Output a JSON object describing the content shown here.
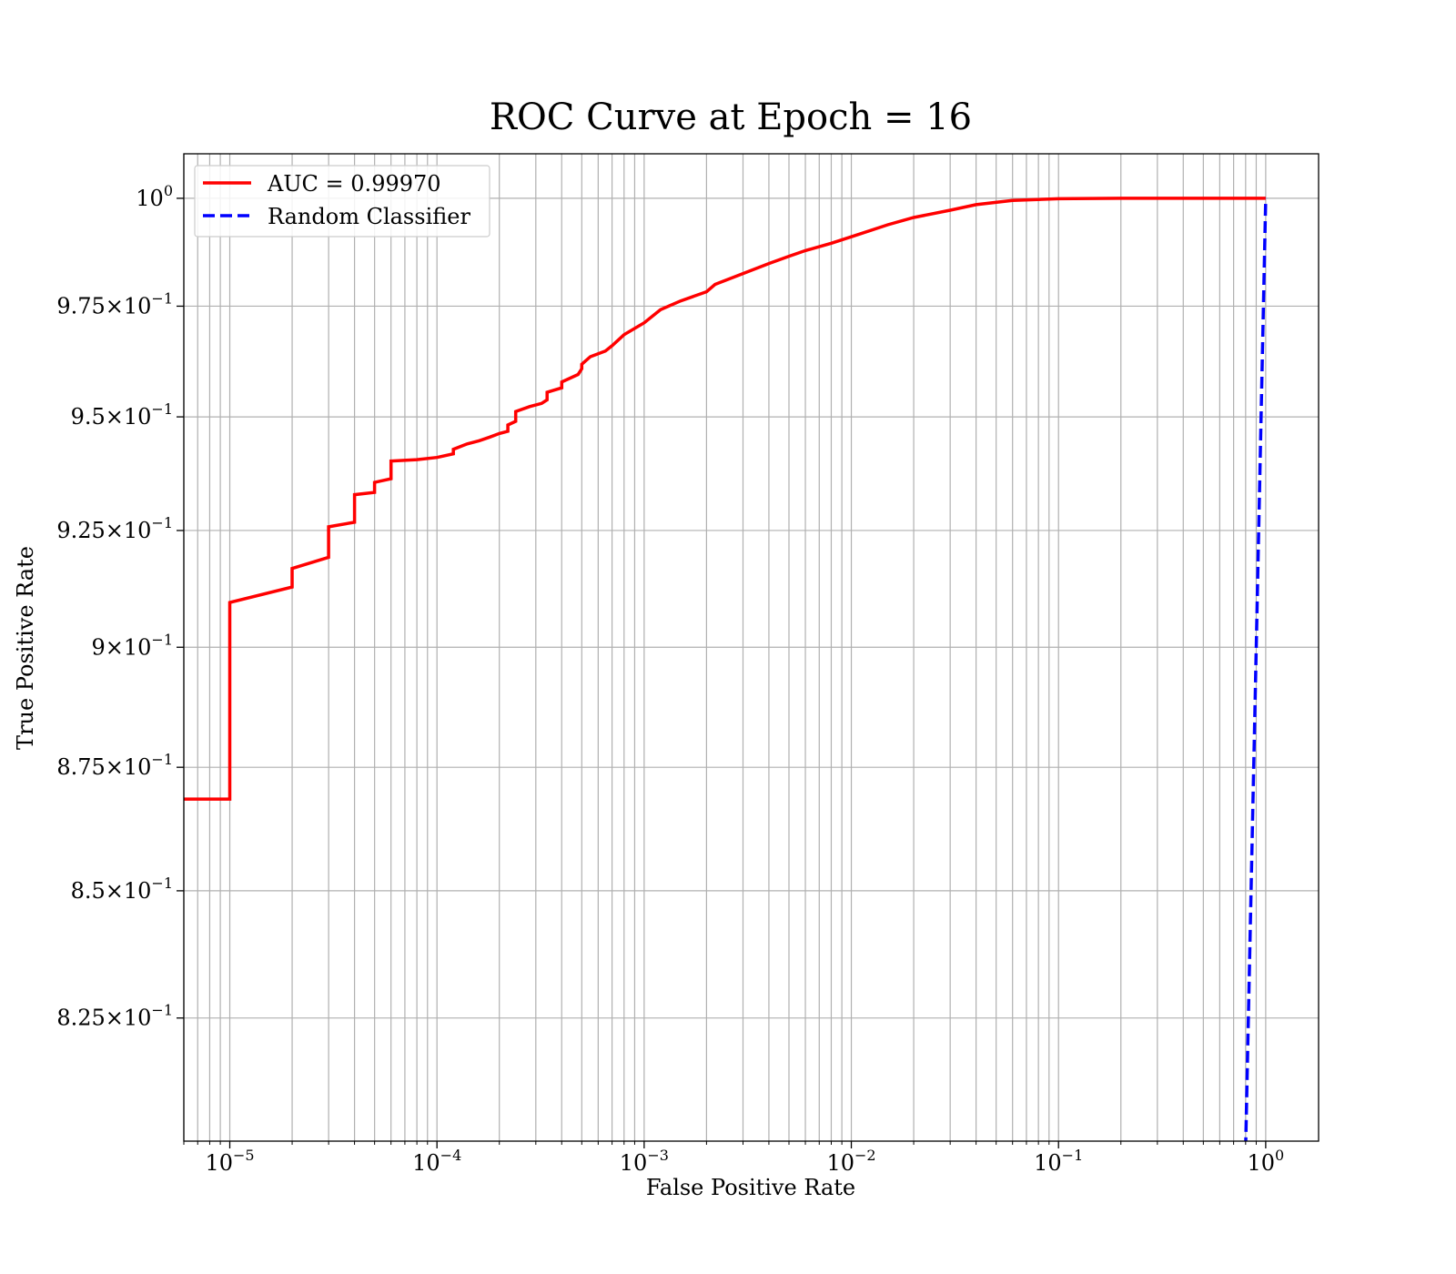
{
  "chart_data": {
    "type": "line",
    "title": "ROC Curve at Epoch = 16",
    "xlabel": "False Positive Rate",
    "ylabel": "True Positive Rate",
    "xscale": "log",
    "yscale": "log",
    "xlim": [
      6e-06,
      1.8
    ],
    "ylim": [
      0.8015,
      1.0105
    ],
    "grid": "major and minor",
    "legend_position": "top-left",
    "x_ticks": [
      {
        "base": "10",
        "exp": "−5"
      },
      {
        "base": "10",
        "exp": "−4"
      },
      {
        "base": "10",
        "exp": "−3"
      },
      {
        "base": "10",
        "exp": "−2"
      },
      {
        "base": "10",
        "exp": "−1"
      },
      {
        "base": "10",
        "exp": "0"
      }
    ],
    "y_ticks": [
      {
        "value": 1.0,
        "mantissa": "",
        "base": "10",
        "exp": "0"
      },
      {
        "value": 0.975,
        "mantissa": "9.75",
        "base": "10",
        "exp": "−1"
      },
      {
        "value": 0.95,
        "mantissa": "9.5",
        "base": "10",
        "exp": "−1"
      },
      {
        "value": 0.925,
        "mantissa": "9.25",
        "base": "10",
        "exp": "−1"
      },
      {
        "value": 0.9,
        "mantissa": "9",
        "base": "10",
        "exp": "−1"
      },
      {
        "value": 0.875,
        "mantissa": "8.75",
        "base": "10",
        "exp": "−1"
      },
      {
        "value": 0.85,
        "mantissa": "8.5",
        "base": "10",
        "exp": "−1"
      },
      {
        "value": 0.825,
        "mantissa": "8.25",
        "base": "10",
        "exp": "−1"
      }
    ],
    "series": [
      {
        "name": "AUC = 0.99970",
        "color": "#ff0000",
        "style": "solid",
        "x": [
          6e-06,
          1e-05,
          1e-05,
          2e-05,
          2e-05,
          3e-05,
          3e-05,
          4e-05,
          4e-05,
          5e-05,
          5e-05,
          6e-05,
          6e-05,
          8e-05,
          0.0001,
          0.00012,
          0.00012,
          0.00014,
          0.00016,
          0.00018,
          0.0002,
          0.00022,
          0.00022,
          0.00024,
          0.00024,
          0.00028,
          0.00032,
          0.00034,
          0.00034,
          0.0004,
          0.0004,
          0.00048,
          0.0005,
          0.0005,
          0.00055,
          0.00065,
          0.0007,
          0.0008,
          0.001,
          0.0012,
          0.0015,
          0.002,
          0.0022,
          0.003,
          0.004,
          0.005,
          0.006,
          0.008,
          0.01,
          0.015,
          0.02,
          0.03,
          0.04,
          0.06,
          0.1,
          0.2,
          0.5,
          1.0
        ],
        "y": [
          0.8685,
          0.8685,
          0.9095,
          0.9128,
          0.9168,
          0.9192,
          0.9258,
          0.9268,
          0.9328,
          0.9333,
          0.9355,
          0.9363,
          0.9402,
          0.9405,
          0.941,
          0.9418,
          0.9428,
          0.944,
          0.9447,
          0.9455,
          0.9463,
          0.9468,
          0.9482,
          0.949,
          0.9512,
          0.9523,
          0.953,
          0.9538,
          0.9555,
          0.9565,
          0.9578,
          0.9595,
          0.9608,
          0.9618,
          0.9635,
          0.9648,
          0.966,
          0.9685,
          0.9712,
          0.9742,
          0.9762,
          0.9783,
          0.98,
          0.9825,
          0.9848,
          0.9865,
          0.9878,
          0.9895,
          0.991,
          0.9938,
          0.9955,
          0.9972,
          0.9985,
          0.9995,
          0.9999,
          1.0,
          1.0,
          1.0
        ]
      },
      {
        "name": "Random Classifier",
        "color": "#0000ff",
        "style": "dashed",
        "x": [
          0.8,
          0.85,
          0.9,
          0.95,
          1.0
        ],
        "y": [
          0.8,
          0.85,
          0.9,
          0.95,
          1.0
        ]
      }
    ]
  }
}
